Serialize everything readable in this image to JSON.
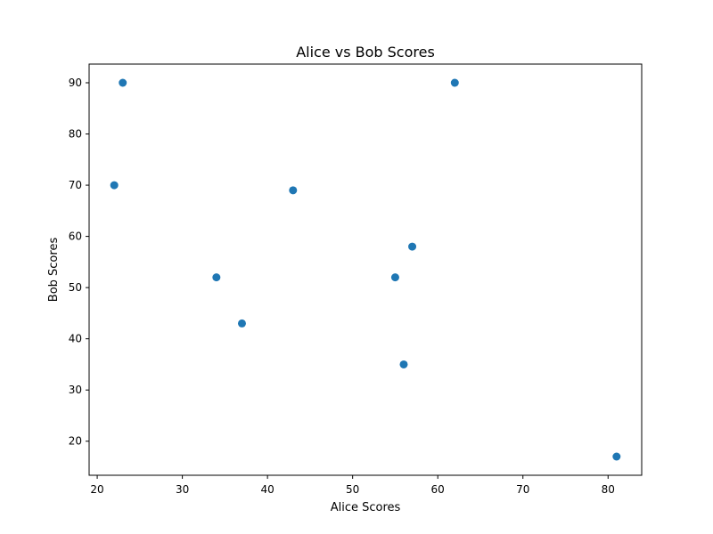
{
  "chart_data": {
    "type": "scatter",
    "title": "Alice vs Bob Scores",
    "xlabel": "Alice Scores",
    "ylabel": "Bob Scores",
    "xlim": [
      19.05,
      83.95
    ],
    "ylim": [
      13.35,
      93.65
    ],
    "xticks": [
      20,
      30,
      40,
      50,
      60,
      70,
      80
    ],
    "yticks": [
      20,
      30,
      40,
      50,
      60,
      70,
      80,
      90
    ],
    "grid": false,
    "legend": "none",
    "series": [
      {
        "color": "#1f77b4",
        "points": [
          {
            "x": 23,
            "y": 90
          },
          {
            "x": 62,
            "y": 90
          },
          {
            "x": 22,
            "y": 70
          },
          {
            "x": 43,
            "y": 69
          },
          {
            "x": 57,
            "y": 58
          },
          {
            "x": 34,
            "y": 52
          },
          {
            "x": 55,
            "y": 52
          },
          {
            "x": 37,
            "y": 43
          },
          {
            "x": 56,
            "y": 35
          },
          {
            "x": 81,
            "y": 17
          }
        ]
      }
    ]
  }
}
